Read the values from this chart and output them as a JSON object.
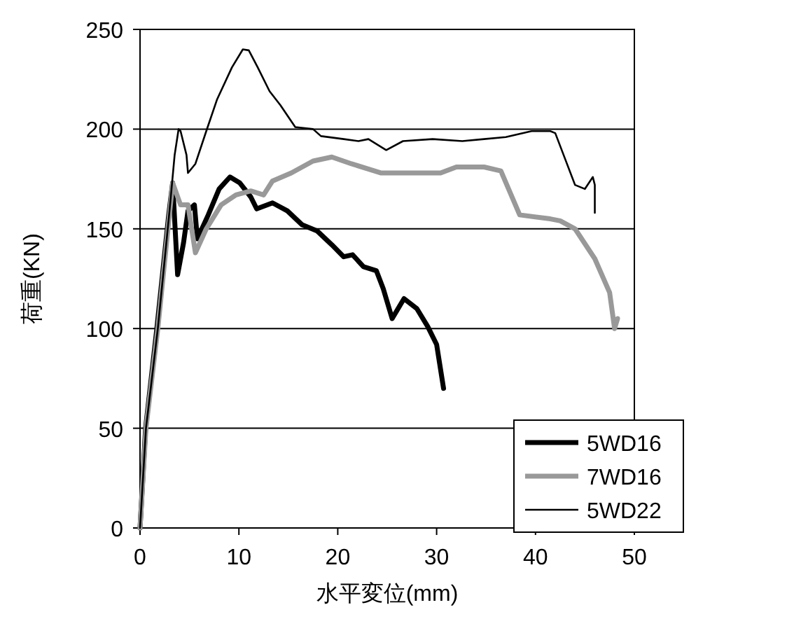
{
  "chart_data": {
    "type": "line",
    "xlabel": "水平変位(mm)",
    "ylabel": "荷重(KN)",
    "xlim": [
      0,
      50
    ],
    "ylim": [
      0,
      250
    ],
    "xticks": [
      0,
      10,
      20,
      30,
      40,
      50
    ],
    "yticks": [
      0,
      50,
      100,
      150,
      200,
      250
    ],
    "grid": "y",
    "legend": "bottom right",
    "marker": "none",
    "line_style": "solid",
    "series": [
      {
        "name": "5WD16",
        "color": "#000000",
        "x": [
          0,
          0.56,
          1.7,
          2.9,
          3.3,
          3.8,
          4.4,
          4.85,
          5.5,
          5.8,
          6.9,
          8.0,
          9.1,
          10.1,
          11.2,
          11.8,
          13.4,
          14.9,
          16.4,
          17.9,
          19.4,
          20.6,
          21.5,
          22.6,
          23.9,
          24.6,
          25.5,
          26.7,
          28.0,
          29.1,
          30.0,
          30.7
        ],
        "values": [
          0,
          50,
          100,
          157,
          173,
          127,
          143,
          159,
          162,
          145,
          157,
          170,
          176,
          173,
          166,
          160,
          163,
          159,
          152,
          149,
          142,
          136,
          137,
          131,
          129,
          120,
          105,
          115,
          110,
          101,
          92,
          70
        ]
      },
      {
        "name": "7WD16",
        "color": "#999999",
        "x": [
          0,
          0.6,
          1.8,
          3.3,
          4.1,
          4.85,
          5.6,
          6.7,
          8.2,
          9.7,
          11.2,
          12.5,
          13.4,
          15.3,
          17.5,
          19.4,
          21.4,
          24.4,
          30.4,
          32.0,
          34.8,
          36.5,
          38.4,
          41.5,
          42.5,
          44,
          46,
          47.5,
          48,
          48.3
        ],
        "values": [
          0,
          50,
          100,
          173,
          162,
          162,
          138,
          150,
          162,
          167,
          169,
          167,
          174,
          178,
          184,
          186,
          182.6,
          178,
          178,
          181,
          181,
          179,
          157,
          155,
          154,
          150,
          135,
          118,
          100,
          105
        ]
      },
      {
        "name": "5WD22",
        "color": "#000000",
        "x": [
          0,
          0.6,
          1.8,
          3.0,
          3.5,
          3.9,
          4.1,
          4.7,
          4.85,
          5.6,
          6.7,
          7.8,
          9.3,
          10.4,
          11.0,
          11.9,
          13.1,
          14.2,
          15.7,
          17.5,
          18.3,
          20.6,
          22.1,
          23.1,
          24.9,
          26.6,
          29.6,
          32.6,
          34.8,
          37.0,
          39.6,
          41.5,
          42,
          43,
          44,
          45,
          45.8,
          46,
          46
        ],
        "values": [
          0,
          50,
          100,
          160,
          187,
          200,
          199,
          187,
          178,
          182.6,
          199,
          215,
          231,
          240,
          239.5,
          231,
          219,
          212,
          201,
          200,
          196.5,
          195,
          194,
          195,
          189.5,
          194,
          195,
          194,
          195,
          196,
          199,
          199,
          198,
          185,
          172,
          170,
          176,
          172,
          158
        ]
      }
    ]
  }
}
